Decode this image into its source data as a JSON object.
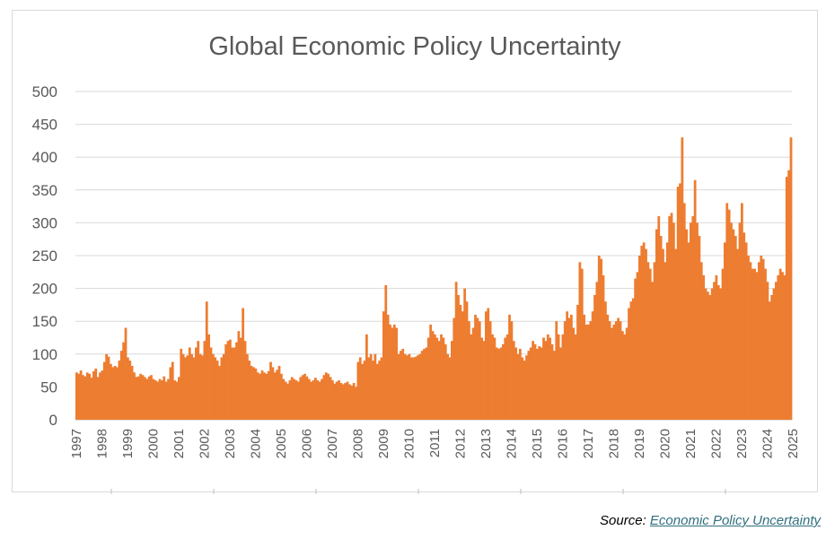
{
  "chart_data": {
    "type": "bar",
    "title": "Global Economic Policy Uncertainty",
    "xlabel": "",
    "ylabel": "",
    "ylim": [
      0,
      500
    ],
    "yticks": [
      0,
      50,
      100,
      150,
      200,
      250,
      300,
      350,
      400,
      450,
      500
    ],
    "xticks": [
      "1997",
      "1998",
      "1999",
      "2000",
      "2001",
      "2002",
      "2003",
      "2004",
      "2005",
      "2006",
      "2007",
      "2008",
      "2009",
      "2010",
      "2011",
      "2012",
      "2013",
      "2014",
      "2015",
      "2016",
      "2017",
      "2018",
      "2019",
      "2020",
      "2021",
      "2022",
      "2023",
      "2024",
      "2025"
    ],
    "grid": true,
    "legend": "none",
    "color": "#ed7d31",
    "series": [
      {
        "values": [
          72,
          70,
          75,
          68,
          66,
          72,
          70,
          64,
          74,
          78,
          65,
          72,
          75,
          88,
          100,
          96,
          85,
          80,
          82,
          80,
          90,
          105,
          118,
          140,
          95,
          90,
          82,
          72,
          65,
          66,
          70,
          68,
          65,
          62,
          66,
          68,
          62,
          60,
          58,
          62,
          60,
          66,
          58,
          62,
          80,
          88,
          60,
          58,
          65,
          108,
          100,
          95,
          98,
          110,
          100,
          95,
          110,
          120,
          100,
          98,
          120,
          180,
          130,
          110,
          100,
          95,
          90,
          82,
          95,
          100,
          115,
          120,
          122,
          110,
          110,
          118,
          135,
          125,
          170,
          120,
          100,
          90,
          82,
          80,
          78,
          72,
          70,
          75,
          72,
          70,
          74,
          88,
          80,
          72,
          76,
          82,
          70,
          62,
          58,
          55,
          60,
          65,
          62,
          60,
          58,
          65,
          68,
          70,
          66,
          62,
          58,
          60,
          64,
          60,
          58,
          62,
          68,
          72,
          70,
          65,
          60,
          55,
          58,
          60,
          56,
          54,
          56,
          58,
          54,
          52,
          56,
          50,
          88,
          95,
          85,
          90,
          130,
          95,
          100,
          90,
          100,
          85,
          90,
          95,
          165,
          205,
          160,
          145,
          140,
          145,
          140,
          100,
          105,
          108,
          100,
          98,
          100,
          95,
          95,
          96,
          98,
          100,
          105,
          108,
          110,
          125,
          145,
          135,
          130,
          125,
          120,
          130,
          125,
          115,
          100,
          95,
          120,
          155,
          210,
          190,
          175,
          165,
          200,
          180,
          150,
          130,
          140,
          160,
          155,
          150,
          125,
          120,
          165,
          170,
          150,
          130,
          125,
          110,
          108,
          110,
          115,
          125,
          130,
          160,
          150,
          120,
          110,
          100,
          108,
          95,
          90,
          98,
          105,
          110,
          120,
          115,
          108,
          112,
          110,
          125,
          120,
          130,
          125,
          115,
          105,
          150,
          130,
          110,
          130,
          150,
          165,
          155,
          160,
          140,
          130,
          175,
          240,
          230,
          160,
          145,
          145,
          150,
          165,
          190,
          210,
          250,
          245,
          220,
          180,
          160,
          150,
          140,
          145,
          150,
          155,
          150,
          135,
          130,
          140,
          170,
          180,
          185,
          215,
          225,
          250,
          265,
          270,
          260,
          240,
          230,
          210,
          240,
          290,
          310,
          280,
          260,
          240,
          270,
          310,
          315,
          300,
          260,
          355,
          360,
          430,
          330,
          290,
          270,
          300,
          310,
          365,
          300,
          280,
          240,
          220,
          200,
          195,
          190,
          200,
          210,
          220,
          205,
          200,
          230,
          270,
          330,
          320,
          300,
          290,
          280,
          260,
          300,
          330,
          285,
          270,
          250,
          240,
          230,
          230,
          225,
          240,
          250,
          245,
          230,
          210,
          180,
          190,
          200,
          210,
          220,
          230,
          225,
          220,
          370,
          380,
          430
        ]
      }
    ]
  },
  "source": {
    "label": "Source:",
    "link_text": "Economic Policy Uncertainty"
  }
}
